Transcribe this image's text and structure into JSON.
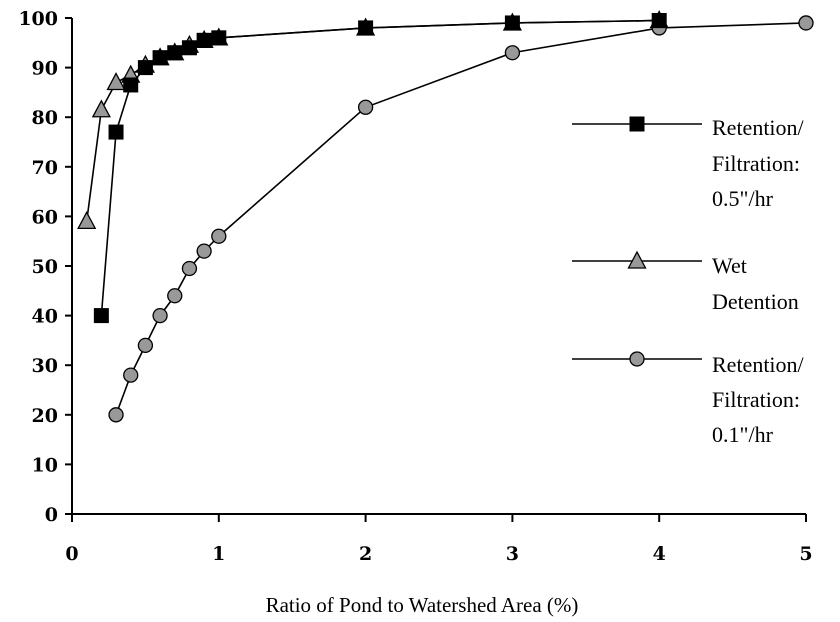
{
  "chart_data": {
    "type": "line",
    "title": "",
    "xlabel": "Ratio of Pond to Watershed Area (%)",
    "ylabel": "",
    "xlim": [
      0,
      5
    ],
    "ylim": [
      0,
      100
    ],
    "x_ticks": [
      "0",
      "1",
      "2",
      "3",
      "4",
      "5"
    ],
    "y_ticks": [
      "0",
      "10",
      "20",
      "30",
      "40",
      "50",
      "60",
      "70",
      "80",
      "90",
      "100"
    ],
    "grid": false,
    "legend_position": "right",
    "series": [
      {
        "name": "Retention/ Filtration: 0.5\"/hr",
        "legend_lines": [
          "Retention/",
          "Filtration:",
          "0.5\"/hr"
        ],
        "marker": "square",
        "marker_color": "#000000",
        "x": [
          0.2,
          0.3,
          0.4,
          0.5,
          0.6,
          0.7,
          0.8,
          0.9,
          1,
          2,
          3,
          4
        ],
        "y": [
          40,
          77,
          86.5,
          90,
          92,
          93,
          94,
          95.5,
          96,
          98,
          99,
          99.5
        ]
      },
      {
        "name": "Wet Detention",
        "legend_lines": [
          "Wet",
          "Detention"
        ],
        "marker": "triangle",
        "marker_color": "#999999",
        "x": [
          0.1,
          0.2,
          0.3,
          0.4,
          0.5,
          0.6,
          0.7,
          0.8,
          0.9,
          1,
          2,
          3,
          4
        ],
        "y": [
          59,
          81.5,
          87,
          88.5,
          90.5,
          92,
          93,
          94.5,
          95.5,
          96,
          98,
          99,
          99.5
        ]
      },
      {
        "name": "Retention/ Filtration: 0.1\"/hr",
        "legend_lines": [
          "Retention/",
          "Filtration:",
          "0.1\"/hr"
        ],
        "marker": "circle",
        "marker_color": "#999999",
        "x": [
          0.3,
          0.4,
          0.5,
          0.6,
          0.7,
          0.8,
          0.9,
          1,
          2,
          3,
          4,
          5
        ],
        "y": [
          20,
          28,
          34,
          40,
          44,
          49.5,
          53,
          56,
          82,
          93,
          98,
          99
        ]
      }
    ]
  }
}
